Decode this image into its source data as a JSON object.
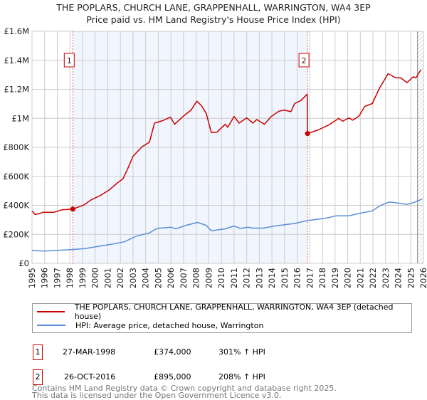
{
  "chart_data": {
    "type": "line",
    "title": "THE POPLARS, CHURCH LANE, GRAPPENHALL, WARRINGTON, WA4 3EP",
    "subtitle": "Price paid vs. HM Land Registry's House Price Index (HPI)",
    "xlim": [
      1995,
      2026
    ],
    "ylim": [
      0,
      1600000
    ],
    "x_ticks": [
      "1995",
      "1996",
      "1997",
      "1998",
      "1999",
      "2000",
      "2001",
      "2002",
      "2003",
      "2004",
      "2005",
      "2006",
      "2007",
      "2008",
      "2009",
      "2010",
      "2011",
      "2012",
      "2013",
      "2014",
      "2015",
      "2016",
      "2017",
      "2018",
      "2019",
      "2020",
      "2021",
      "2022",
      "2023",
      "2024",
      "2025",
      "2026"
    ],
    "y_ticks": [
      {
        "v": 0,
        "label": "£0"
      },
      {
        "v": 200000,
        "label": "£200K"
      },
      {
        "v": 400000,
        "label": "£400K"
      },
      {
        "v": 600000,
        "label": "£600K"
      },
      {
        "v": 800000,
        "label": "£800K"
      },
      {
        "v": 1000000,
        "label": "£1M"
      },
      {
        "v": 1200000,
        "label": "£1.2M"
      },
      {
        "v": 1400000,
        "label": "£1.4M"
      },
      {
        "v": 1600000,
        "label": "£1.6M"
      }
    ],
    "grid": true,
    "shaded_period": [
      1998.23,
      2016.82
    ],
    "forecast_hatch_from": 2025.5,
    "series": [
      {
        "name": "THE POPLARS, CHURCH LANE, GRAPPENHALL, WARRINGTON, WA4 3EP (detached house)",
        "color": "#cc0000",
        "points": [
          [
            1995.0,
            361000
          ],
          [
            1995.25,
            336000
          ],
          [
            1995.9,
            352000
          ],
          [
            1996.74,
            352000
          ],
          [
            1997.36,
            369000
          ],
          [
            1998.23,
            374000
          ],
          [
            1999.1,
            402000
          ],
          [
            1999.7,
            439000
          ],
          [
            2000.4,
            467000
          ],
          [
            2001.1,
            505000
          ],
          [
            2001.8,
            557000
          ],
          [
            2002.2,
            582000
          ],
          [
            2002.6,
            656000
          ],
          [
            2003.0,
            738000
          ],
          [
            2003.7,
            803000
          ],
          [
            2004.3,
            836000
          ],
          [
            2004.7,
            967000
          ],
          [
            2005.35,
            984000
          ],
          [
            2005.96,
            1008000
          ],
          [
            2006.3,
            959000
          ],
          [
            2007.0,
            1016000
          ],
          [
            2007.6,
            1057000
          ],
          [
            2008.05,
            1118000
          ],
          [
            2008.4,
            1090000
          ],
          [
            2008.8,
            1033000
          ],
          [
            2009.2,
            902000
          ],
          [
            2009.65,
            905000
          ],
          [
            2010.3,
            959000
          ],
          [
            2010.5,
            938000
          ],
          [
            2011.0,
            1013000
          ],
          [
            2011.4,
            967000
          ],
          [
            2012.0,
            1003000
          ],
          [
            2012.5,
            967000
          ],
          [
            2012.8,
            992000
          ],
          [
            2013.4,
            959000
          ],
          [
            2013.95,
            1013000
          ],
          [
            2014.55,
            1049000
          ],
          [
            2014.95,
            1057000
          ],
          [
            2015.5,
            1046000
          ],
          [
            2015.8,
            1102000
          ],
          [
            2016.3,
            1123000
          ],
          [
            2016.8,
            1167000
          ],
          [
            2016.82,
            895000
          ],
          [
            2017.6,
            918000
          ],
          [
            2018.5,
            954000
          ],
          [
            2019.3,
            1000000
          ],
          [
            2019.6,
            980000
          ],
          [
            2020.1,
            1003000
          ],
          [
            2020.4,
            987000
          ],
          [
            2020.9,
            1016000
          ],
          [
            2021.35,
            1082000
          ],
          [
            2021.95,
            1102000
          ],
          [
            2022.5,
            1205000
          ],
          [
            2023.2,
            1308000
          ],
          [
            2023.8,
            1279000
          ],
          [
            2024.2,
            1279000
          ],
          [
            2024.7,
            1246000
          ],
          [
            2025.2,
            1287000
          ],
          [
            2025.4,
            1279000
          ],
          [
            2025.8,
            1336000
          ]
        ]
      },
      {
        "name": "HPI: Average price, detached house, Warrington",
        "color": "#5b8fd6",
        "points": [
          [
            1995.0,
            90000
          ],
          [
            1995.9,
            85000
          ],
          [
            1998.2,
            95000
          ],
          [
            1999.2,
            102000
          ],
          [
            2001.25,
            131000
          ],
          [
            2002.3,
            148000
          ],
          [
            2003.3,
            189000
          ],
          [
            2004.3,
            210000
          ],
          [
            2004.9,
            241000
          ],
          [
            2006.0,
            249000
          ],
          [
            2006.4,
            238000
          ],
          [
            2007.2,
            262000
          ],
          [
            2008.1,
            282000
          ],
          [
            2008.8,
            262000
          ],
          [
            2009.2,
            225000
          ],
          [
            2010.3,
            238000
          ],
          [
            2011.0,
            257000
          ],
          [
            2011.5,
            241000
          ],
          [
            2012.1,
            249000
          ],
          [
            2012.5,
            243000
          ],
          [
            2013.3,
            243000
          ],
          [
            2014.2,
            257000
          ],
          [
            2015.0,
            266000
          ],
          [
            2015.8,
            275000
          ],
          [
            2016.83,
            295000
          ],
          [
            2018.25,
            311000
          ],
          [
            2019.1,
            328000
          ],
          [
            2020.1,
            328000
          ],
          [
            2020.5,
            336000
          ],
          [
            2021.35,
            352000
          ],
          [
            2021.95,
            361000
          ],
          [
            2022.55,
            397000
          ],
          [
            2023.3,
            423000
          ],
          [
            2024.2,
            413000
          ],
          [
            2024.7,
            407000
          ],
          [
            2025.2,
            418000
          ],
          [
            2025.9,
            443000
          ]
        ]
      }
    ],
    "sales": [
      {
        "id": "1",
        "x": 1998.23,
        "y": 374000
      },
      {
        "id": "2",
        "x": 2016.82,
        "y": 895000
      }
    ]
  },
  "legend": {
    "red": "THE POPLARS, CHURCH LANE, GRAPPENHALL, WARRINGTON, WA4 3EP (detached house)",
    "blue": "HPI: Average price, detached house, Warrington"
  },
  "transactions": [
    {
      "id": "1",
      "date": "27-MAR-1998",
      "price": "£374,000",
      "change": "301% ↑ HPI"
    },
    {
      "id": "2",
      "date": "26-OCT-2016",
      "price": "£895,000",
      "change": "208% ↑ HPI"
    }
  ],
  "footer": {
    "line1": "Contains HM Land Registry data © Crown copyright and database right 2025.",
    "line2": "This data is licensed under the Open Government Licence v3.0."
  }
}
